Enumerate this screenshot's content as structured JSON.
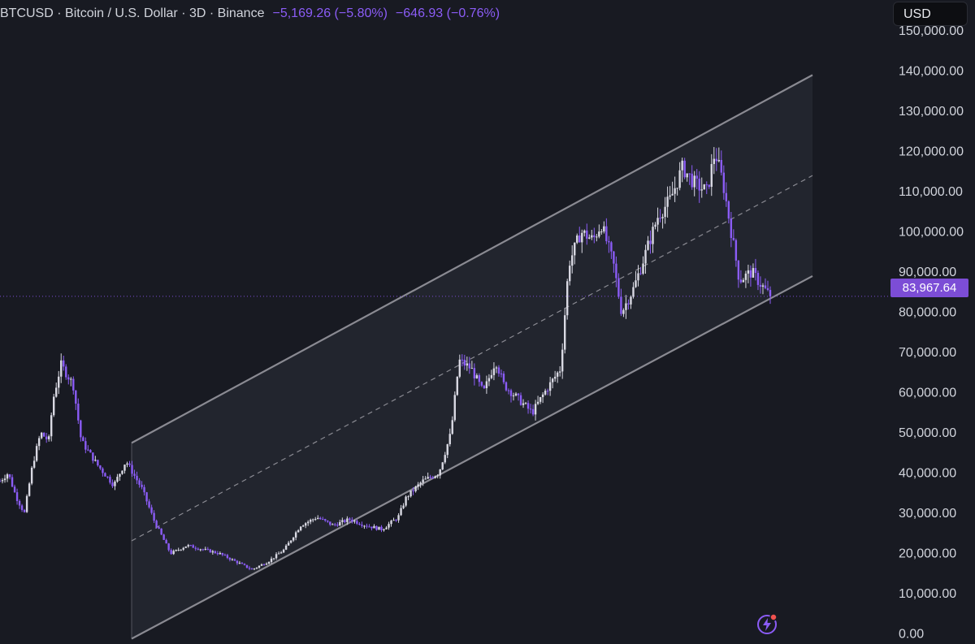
{
  "header": {
    "symbol": "BTCUSD",
    "description": "Bitcoin / U.S. Dollar",
    "interval": "3D",
    "exchange": "Binance",
    "separator": "·",
    "change_abs": "−5,169.26 (−5.80%)",
    "change_last": "−646.93 (−0.76%)"
  },
  "currency_button": "USD",
  "last_price_label": "83,967.64",
  "colors": {
    "background": "#181a22",
    "up_candle": "#d9d9e3",
    "down_candle": "#8b5cf6",
    "channel_line": "#8a8a92",
    "channel_fill": "#22252e",
    "price_badge": "#7c4dd6",
    "axis_text": "#d1d4dc"
  },
  "icons": {
    "alert": "lightning-bolt-icon"
  },
  "chart_data": {
    "type": "candlestick",
    "symbol": "BTCUSD",
    "interval": "3D",
    "y_axis": {
      "ticks": [
        "0.00",
        "10,000.00",
        "20,000.00",
        "30,000.00",
        "40,000.00",
        "50,000.00",
        "60,000.00",
        "70,000.00",
        "80,000.00",
        "90,000.00",
        "100,000.00",
        "110,000.00",
        "120,000.00",
        "130,000.00",
        "140,000.00",
        "150,000.00"
      ],
      "range": [
        -1500,
        152000
      ]
    },
    "last_price": 83967.64,
    "price_path": [
      [
        0,
        38000
      ],
      [
        0.01,
        40000
      ],
      [
        0.02,
        34000
      ],
      [
        0.03,
        30000
      ],
      [
        0.04,
        42000
      ],
      [
        0.05,
        50000
      ],
      [
        0.06,
        48000
      ],
      [
        0.065,
        58000
      ],
      [
        0.075,
        67000
      ],
      [
        0.09,
        62000
      ],
      [
        0.1,
        48000
      ],
      [
        0.12,
        42000
      ],
      [
        0.14,
        37000
      ],
      [
        0.155,
        43000
      ],
      [
        0.175,
        36000
      ],
      [
        0.19,
        28000
      ],
      [
        0.21,
        20000
      ],
      [
        0.23,
        22000
      ],
      [
        0.25,
        21000
      ],
      [
        0.27,
        20000
      ],
      [
        0.29,
        18000
      ],
      [
        0.31,
        16000
      ],
      [
        0.33,
        18000
      ],
      [
        0.35,
        21000
      ],
      [
        0.37,
        27000
      ],
      [
        0.39,
        29000
      ],
      [
        0.41,
        27000
      ],
      [
        0.43,
        28500
      ],
      [
        0.45,
        27000
      ],
      [
        0.47,
        26000
      ],
      [
        0.49,
        29000
      ],
      [
        0.5,
        34000
      ],
      [
        0.52,
        38000
      ],
      [
        0.54,
        40000
      ],
      [
        0.555,
        50000
      ],
      [
        0.565,
        68000
      ],
      [
        0.58,
        66000
      ],
      [
        0.595,
        60000
      ],
      [
        0.61,
        68000
      ],
      [
        0.62,
        62000
      ],
      [
        0.64,
        58000
      ],
      [
        0.655,
        55000
      ],
      [
        0.67,
        60000
      ],
      [
        0.69,
        66000
      ],
      [
        0.7,
        92000
      ],
      [
        0.715,
        100000
      ],
      [
        0.73,
        98000
      ],
      [
        0.74,
        102000
      ],
      [
        0.755,
        92000
      ],
      [
        0.765,
        80000
      ],
      [
        0.78,
        86000
      ],
      [
        0.795,
        95000
      ],
      [
        0.81,
        104000
      ],
      [
        0.825,
        108000
      ],
      [
        0.84,
        116000
      ],
      [
        0.855,
        112000
      ],
      [
        0.87,
        110000
      ],
      [
        0.88,
        120000
      ],
      [
        0.89,
        112000
      ],
      [
        0.9,
        100000
      ],
      [
        0.91,
        88000
      ],
      [
        0.925,
        90000
      ],
      [
        0.94,
        86000
      ],
      [
        0.948,
        83967.64
      ]
    ],
    "channel": {
      "upper": [
        [
          0.162,
          47500
        ],
        [
          1.0,
          139000
        ]
      ],
      "lower": [
        [
          0.162,
          -1200
        ],
        [
          1.0,
          89000
        ]
      ],
      "midline": "dashed"
    },
    "grid": false
  }
}
